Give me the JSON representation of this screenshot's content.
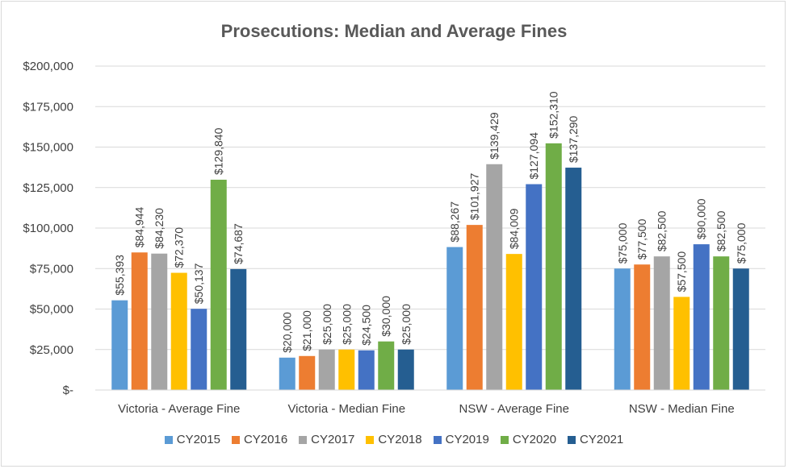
{
  "chart_data": {
    "type": "bar",
    "title": "Prosecutions: Median and Average Fines",
    "xlabel": "",
    "ylabel": "",
    "ylim": [
      0,
      200000
    ],
    "yticks": [
      0,
      25000,
      50000,
      75000,
      100000,
      125000,
      150000,
      175000,
      200000
    ],
    "ytick_labels": [
      "$-",
      "$25,000",
      "$50,000",
      "$75,000",
      "$100,000",
      "$125,000",
      "$150,000",
      "$175,000",
      "$200,000"
    ],
    "grid": true,
    "legend_position": "bottom",
    "categories": [
      "Victoria - Average Fine",
      "Victoria - Median Fine",
      "NSW - Average Fine",
      "NSW - Median Fine"
    ],
    "series": [
      {
        "name": "CY2015",
        "color": "#5b9bd5",
        "values": [
          55393,
          20000,
          88267,
          75000
        ]
      },
      {
        "name": "CY2016",
        "color": "#ed7d31",
        "values": [
          84944,
          21000,
          101927,
          77500
        ]
      },
      {
        "name": "CY2017",
        "color": "#a5a5a5",
        "values": [
          84230,
          25000,
          139429,
          82500
        ]
      },
      {
        "name": "CY2018",
        "color": "#ffc000",
        "values": [
          72370,
          25000,
          84009,
          57500
        ]
      },
      {
        "name": "CY2019",
        "color": "#4472c4",
        "values": [
          50137,
          24500,
          127094,
          90000
        ]
      },
      {
        "name": "CY2020",
        "color": "#70ad47",
        "values": [
          129840,
          30000,
          152310,
          82500
        ]
      },
      {
        "name": "CY2021",
        "color": "#255e91",
        "values": [
          74687,
          25000,
          137290,
          75000
        ]
      }
    ]
  }
}
